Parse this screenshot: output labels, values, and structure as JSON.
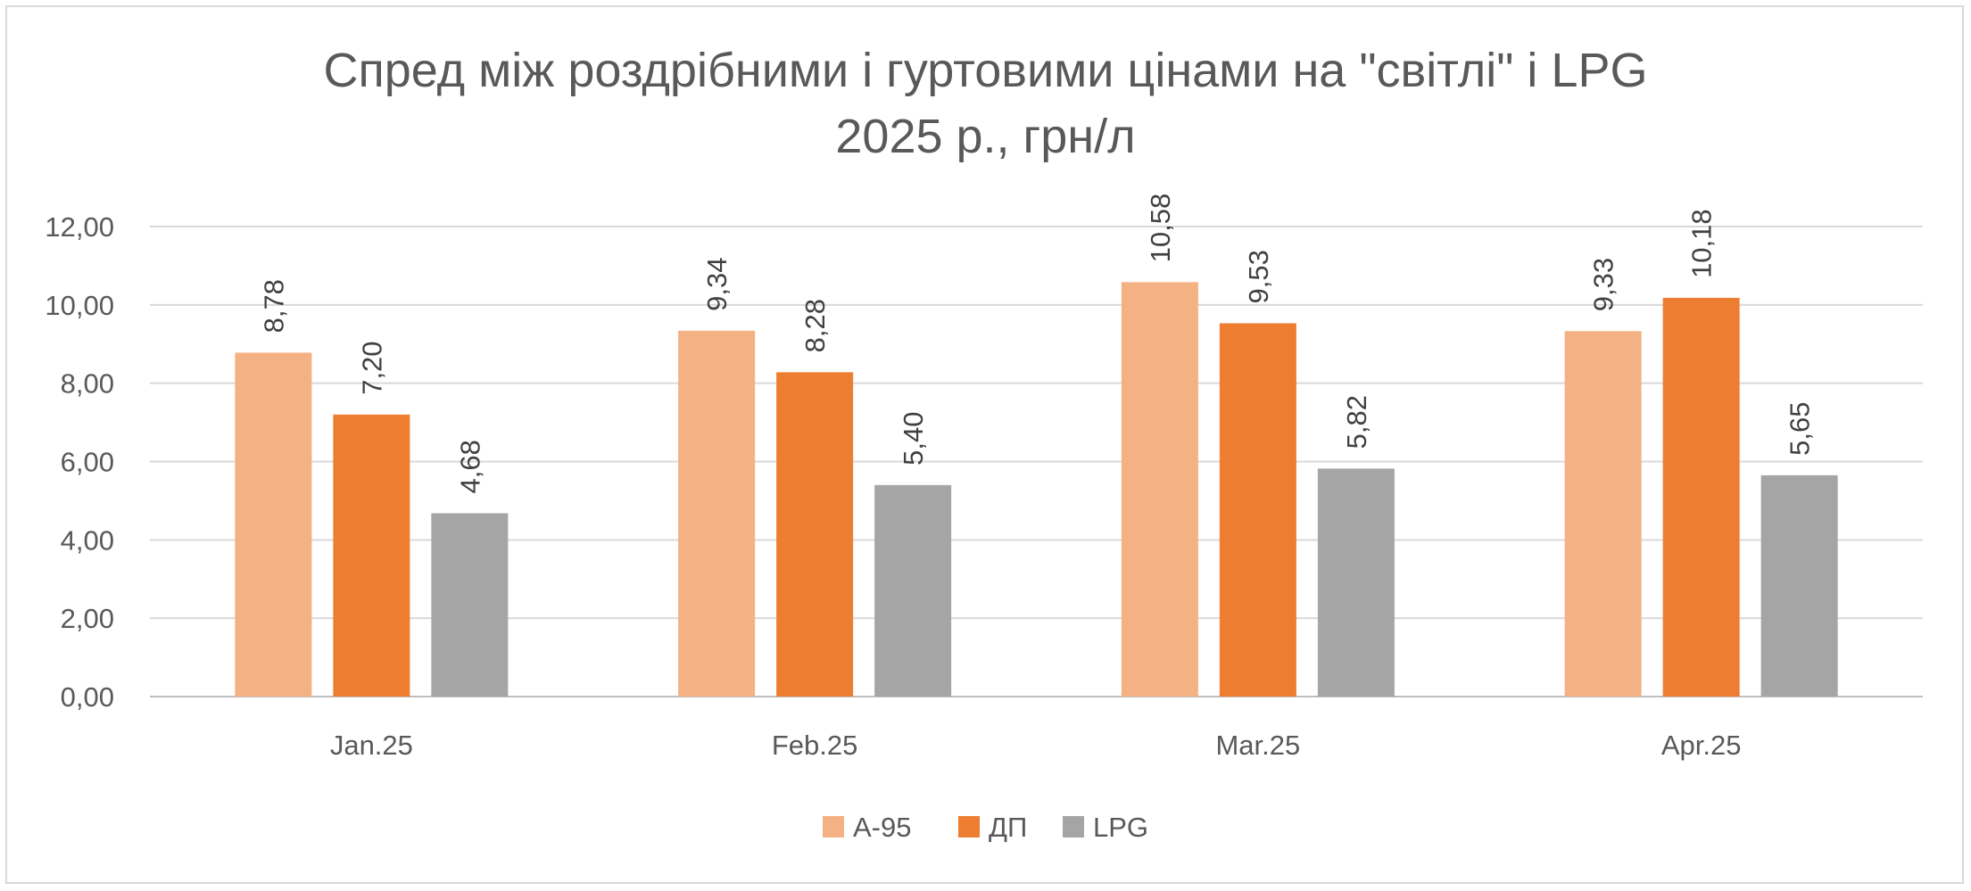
{
  "chart_data": {
    "type": "bar",
    "title": "Спред між роздрібними і гуртовими цінами на \"світлі\" і LPG",
    "subtitle": "2025 р., грн/л",
    "categories": [
      "Jan.25",
      "Feb.25",
      "Mar.25",
      "Apr.25"
    ],
    "series": [
      {
        "name": "А-95",
        "color": "#f4b183",
        "values": [
          8.78,
          9.34,
          10.58,
          9.33
        ],
        "labels": [
          "8,78",
          "9,34",
          "10,58",
          "9,33"
        ]
      },
      {
        "name": "ДП",
        "color": "#ed7d31",
        "values": [
          7.2,
          8.28,
          9.53,
          10.18
        ],
        "labels": [
          "7,20",
          "8,28",
          "9,53",
          "10,18"
        ]
      },
      {
        "name": "LPG",
        "color": "#a5a5a5",
        "values": [
          4.68,
          5.4,
          5.82,
          5.65
        ],
        "labels": [
          "4,68",
          "5,40",
          "5,82",
          "5,65"
        ]
      }
    ],
    "ylim": [
      0,
      12
    ],
    "yticks": [
      0,
      2,
      4,
      6,
      8,
      10,
      12
    ],
    "ytick_labels": [
      "0,00",
      "2,00",
      "4,00",
      "6,00",
      "8,00",
      "10,00",
      "12,00"
    ],
    "xlabel": "",
    "ylabel": "",
    "grid": true,
    "legend_position": "bottom"
  }
}
